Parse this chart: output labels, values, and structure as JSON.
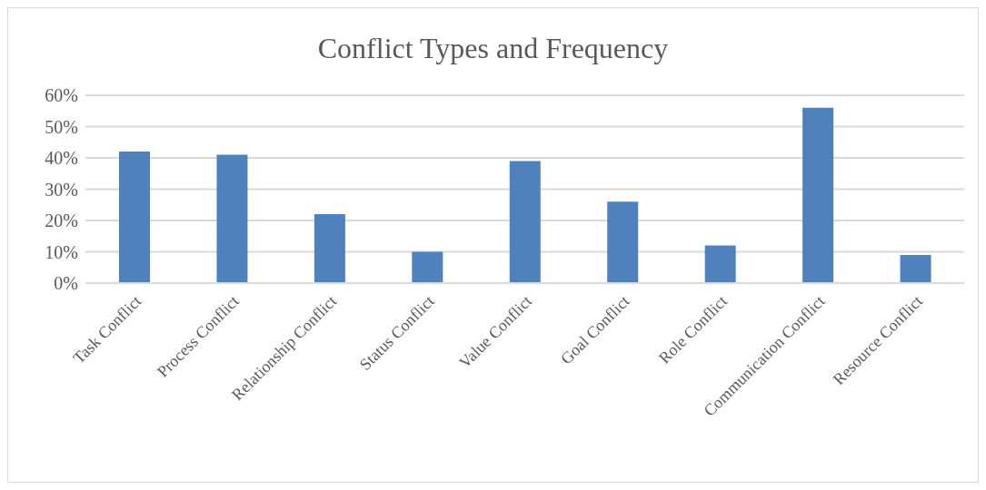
{
  "chart_data": {
    "type": "bar",
    "title": "Conflict Types and Frequency",
    "categories": [
      "Task Conflict",
      "Process Conflict",
      "Relationship Conflict",
      "Status Conflict",
      "Value Conflict",
      "Goal Conflict",
      "Role Conflict",
      "Communication Conflict",
      "Resource Conflict"
    ],
    "values": [
      42,
      41,
      22,
      10,
      39,
      26,
      12,
      56,
      9
    ],
    "color": "#4f81bd",
    "ylim": [
      0,
      60
    ],
    "yticks": [
      {
        "value": 0,
        "label": "0%"
      },
      {
        "value": 10,
        "label": "10%"
      },
      {
        "value": 20,
        "label": "20%"
      },
      {
        "value": 30,
        "label": "30%"
      },
      {
        "value": 40,
        "label": "40%"
      },
      {
        "value": 50,
        "label": "50%"
      },
      {
        "value": 60,
        "label": "60%"
      }
    ],
    "grid": "y"
  }
}
